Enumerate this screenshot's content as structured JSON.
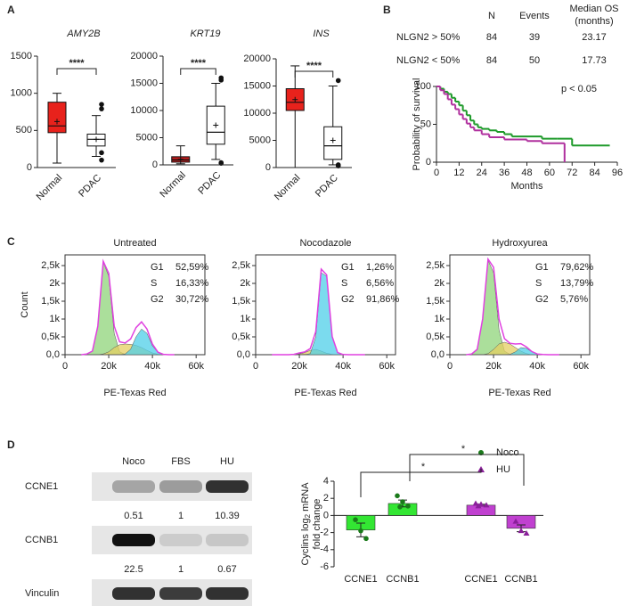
{
  "panel_labels": [
    "A",
    "B",
    "C",
    "D"
  ],
  "chart_data": [
    {
      "type": "box",
      "title": "AMY2B",
      "categories": [
        "Normal",
        "PDAC"
      ],
      "significance": "****",
      "ylim": [
        0,
        1500
      ],
      "yticks": [
        0,
        500,
        1000,
        1500
      ],
      "boxes": [
        {
          "color": "#e8221c",
          "min": 60,
          "q1": 470,
          "median": 560,
          "q3": 880,
          "max": 1000,
          "mean": 620,
          "outliers": []
        },
        {
          "color": "#ffffff",
          "min": 150,
          "q1": 290,
          "median": 380,
          "q3": 450,
          "max": 700,
          "mean": 380,
          "outliers": [
            850,
            790,
            200,
            100
          ]
        }
      ]
    },
    {
      "type": "box",
      "title": "KRT19",
      "categories": [
        "Normal",
        "PDAC"
      ],
      "significance": "****",
      "ylim": [
        0,
        20000
      ],
      "yticks": [
        0,
        5000,
        10000,
        15000,
        20000
      ],
      "boxes": [
        {
          "color": "#b81d1d",
          "min": 200,
          "q1": 500,
          "median": 900,
          "q3": 1500,
          "max": 3500,
          "mean": 1000,
          "outliers": []
        },
        {
          "color": "#ffffff",
          "min": 1000,
          "q1": 3800,
          "median": 6000,
          "q3": 10800,
          "max": 15000,
          "mean": 7300,
          "outliers": [
            16000,
            15600,
            400,
            300
          ]
        }
      ]
    },
    {
      "type": "box",
      "title": "INS",
      "categories": [
        "Normal",
        "PDAC"
      ],
      "significance": "****",
      "ylim": [
        0,
        20000
      ],
      "yticks": [
        0,
        5000,
        10000,
        15000,
        20000
      ],
      "boxes": [
        {
          "color": "#e8221c",
          "min": 0,
          "q1": 10500,
          "median": 12000,
          "q3": 14500,
          "max": 18700,
          "mean": 12500,
          "outliers": []
        },
        {
          "color": "#ffffff",
          "min": 500,
          "q1": 1500,
          "median": 4000,
          "q3": 7500,
          "max": 15000,
          "mean": 5000,
          "outliers": [
            16000,
            500,
            300
          ]
        }
      ]
    },
    {
      "type": "km",
      "xlabel": "Months",
      "ylabel": "Probability of survival",
      "annotation": "p < 0.05",
      "table_columns": [
        "N",
        "Events",
        "Median OS",
        "(months)"
      ],
      "xlim": [
        0,
        96
      ],
      "xticks": [
        0,
        12,
        24,
        36,
        48,
        60,
        72,
        84,
        96
      ],
      "ylim": [
        0,
        100
      ],
      "yticks": [
        0,
        50,
        100
      ],
      "series": [
        {
          "name": "NLGN2 > 50%",
          "color": "#1e9a2a",
          "n": 84,
          "events": 39,
          "median_os": 23.17,
          "x": [
            0,
            2,
            4,
            6,
            8,
            10,
            12,
            14,
            16,
            18,
            20,
            22,
            24,
            28,
            32,
            36,
            40,
            48,
            56,
            64,
            72,
            92
          ],
          "values": [
            100,
            97,
            93,
            90,
            85,
            80,
            75,
            68,
            62,
            55,
            50,
            46,
            44,
            42,
            40,
            37,
            34,
            34,
            31,
            31,
            22,
            22
          ]
        },
        {
          "name": "NLGN2 < 50%",
          "color": "#b0309e",
          "n": 84,
          "events": 50,
          "median_os": 17.73,
          "x": [
            0,
            2,
            4,
            6,
            8,
            10,
            12,
            14,
            16,
            18,
            20,
            24,
            28,
            36,
            48,
            56,
            68
          ],
          "values": [
            100,
            95,
            90,
            83,
            76,
            70,
            63,
            57,
            51,
            46,
            42,
            37,
            33,
            30,
            28,
            25,
            0
          ]
        }
      ]
    },
    {
      "type": "density",
      "title": "Untreated",
      "xlabel": "PE-Texas Red",
      "ylabel": "Count",
      "xlim": [
        0,
        64000
      ],
      "xticks": [
        0,
        {
          "value": 20000,
          "label": "20k"
        },
        {
          "value": 40000,
          "label": "40k"
        },
        {
          "value": 60000,
          "label": "60k"
        }
      ],
      "ylim": [
        0,
        2800
      ],
      "yticks": [
        {
          "value": 0,
          "label": "0,0"
        },
        {
          "value": 500,
          "label": "0,5k"
        },
        {
          "value": 1000,
          "label": "1k"
        },
        {
          "value": 1500,
          "label": "1,5k"
        },
        {
          "value": 2000,
          "label": "2k"
        },
        {
          "value": 2500,
          "label": "2,5k"
        }
      ],
      "x": [
        7500,
        10000,
        12500,
        15000,
        17500,
        20000,
        22500,
        25000,
        27500,
        30000,
        32500,
        35000,
        37500,
        40000,
        42500,
        45000,
        47500,
        50000
      ],
      "series": [
        {
          "name": "G1",
          "color": "#8fd47a",
          "percent": 52.59,
          "percent_label": "52,59%",
          "values": [
            0,
            20,
            100,
            800,
            2600,
            2200,
            600,
            80,
            10,
            0,
            0,
            0,
            0,
            0,
            0,
            0,
            0,
            0
          ]
        },
        {
          "name": "S",
          "color": "#e4cf62",
          "percent": 16.33,
          "percent_label": "16,33%",
          "values": [
            0,
            0,
            0,
            0,
            20,
            80,
            200,
            280,
            300,
            290,
            260,
            200,
            120,
            50,
            10,
            0,
            0,
            0
          ]
        },
        {
          "name": "G2",
          "color": "#4fcfe8",
          "percent": 30.72,
          "percent_label": "30,72%",
          "values": [
            0,
            0,
            0,
            0,
            0,
            0,
            0,
            0,
            20,
            150,
            500,
            720,
            600,
            250,
            60,
            10,
            0,
            0
          ]
        }
      ],
      "envelope": {
        "color": "#e040e0",
        "values": [
          0,
          20,
          100,
          800,
          2620,
          2280,
          800,
          360,
          330,
          440,
          760,
          920,
          720,
          300,
          70,
          10,
          0,
          0
        ]
      }
    },
    {
      "type": "density",
      "title": "Nocodazole",
      "xlabel": "PE-Texas Red",
      "xlim": [
        0,
        64000
      ],
      "xticks": [
        0,
        {
          "value": 20000,
          "label": "20k"
        },
        {
          "value": 40000,
          "label": "40k"
        },
        {
          "value": 60000,
          "label": "60k"
        }
      ],
      "ylim": [
        0,
        2800
      ],
      "yticks": [
        {
          "value": 0,
          "label": "0,0"
        },
        {
          "value": 500,
          "label": "0,5k"
        },
        {
          "value": 1000,
          "label": "1k"
        },
        {
          "value": 1500,
          "label": "1,5k"
        },
        {
          "value": 2000,
          "label": "2k"
        },
        {
          "value": 2500,
          "label": "2,5k"
        }
      ],
      "x": [
        7500,
        10000,
        12500,
        15000,
        17500,
        20000,
        22500,
        25000,
        27500,
        30000,
        32500,
        35000,
        37500,
        40000,
        42500,
        45000,
        47500,
        50000
      ],
      "series": [
        {
          "name": "G1",
          "color": "#8fd47a",
          "percent": 1.26,
          "percent_label": "1,26%",
          "values": [
            0,
            0,
            0,
            0,
            10,
            30,
            20,
            0,
            0,
            0,
            0,
            0,
            0,
            0,
            0,
            0,
            0,
            0
          ]
        },
        {
          "name": "S",
          "color": "#e4cf62",
          "percent": 6.56,
          "percent_label": "6,56%",
          "values": [
            0,
            0,
            0,
            0,
            0,
            20,
            60,
            120,
            150,
            100,
            40,
            10,
            0,
            0,
            0,
            0,
            0,
            0
          ]
        },
        {
          "name": "G2",
          "color": "#4fcfe8",
          "percent": 91.86,
          "percent_label": "91,86%",
          "values": [
            0,
            0,
            0,
            0,
            0,
            0,
            0,
            30,
            500,
            2300,
            2200,
            500,
            60,
            5,
            0,
            0,
            0,
            0
          ]
        }
      ],
      "envelope": {
        "color": "#e040e0",
        "values": [
          0,
          0,
          0,
          0,
          10,
          50,
          80,
          170,
          650,
          2400,
          2240,
          510,
          60,
          5,
          0,
          0,
          0,
          0
        ]
      }
    },
    {
      "type": "density",
      "title": "Hydroxyurea",
      "xlabel": "PE-Texas Red",
      "xlim": [
        0,
        64000
      ],
      "xticks": [
        0,
        {
          "value": 20000,
          "label": "20k"
        },
        {
          "value": 40000,
          "label": "40k"
        },
        {
          "value": 60000,
          "label": "60k"
        }
      ],
      "ylim": [
        0,
        2800
      ],
      "yticks": [
        {
          "value": 0,
          "label": "0,0"
        },
        {
          "value": 500,
          "label": "0,5k"
        },
        {
          "value": 1000,
          "label": "1k"
        },
        {
          "value": 1500,
          "label": "1,5k"
        },
        {
          "value": 2000,
          "label": "2k"
        },
        {
          "value": 2500,
          "label": "2,5k"
        }
      ],
      "x": [
        7500,
        10000,
        12500,
        15000,
        17500,
        20000,
        22500,
        25000,
        27500,
        30000,
        32500,
        35000,
        37500,
        40000,
        42500,
        45000,
        47500,
        50000
      ],
      "series": [
        {
          "name": "G1",
          "color": "#8fd47a",
          "percent": 79.62,
          "percent_label": "79,62%",
          "values": [
            0,
            20,
            150,
            1000,
            2650,
            2300,
            700,
            100,
            10,
            0,
            0,
            0,
            0,
            0,
            0,
            0,
            0,
            0
          ]
        },
        {
          "name": "S",
          "color": "#e4cf62",
          "percent": 13.79,
          "percent_label": "13,79%",
          "values": [
            0,
            0,
            0,
            0,
            30,
            150,
            300,
            350,
            300,
            200,
            100,
            30,
            0,
            0,
            0,
            0,
            0,
            0
          ]
        },
        {
          "name": "G2",
          "color": "#4fcfe8",
          "percent": 5.76,
          "percent_label": "5,76%",
          "values": [
            0,
            0,
            0,
            0,
            0,
            0,
            0,
            0,
            10,
            80,
            200,
            180,
            80,
            20,
            0,
            0,
            0,
            0
          ]
        }
      ],
      "envelope": {
        "color": "#e040e0",
        "values": [
          0,
          20,
          150,
          1000,
          2680,
          2450,
          1000,
          450,
          320,
          300,
          310,
          220,
          90,
          20,
          5,
          0,
          0,
          0
        ]
      }
    },
    {
      "type": "bar",
      "ylabel_parts": [
        "Cyclins log",
        "2",
        " mRNA",
        "fold change"
      ],
      "significance": [
        "*",
        "*"
      ],
      "categories": [
        "CCNE1",
        "CCNB1",
        "CCNE1",
        "CCNB1"
      ],
      "ylim": [
        -6,
        4
      ],
      "yticks": [
        -6,
        -4,
        -2,
        0,
        2,
        4
      ],
      "series": [
        {
          "name": "Noco",
          "color": "#33e633",
          "point_color": "#1a7a1a",
          "marker": "circle",
          "values": [
            -1.7,
            1.4,
            null,
            null
          ],
          "errors": [
            0.8,
            0.4,
            null,
            null
          ],
          "points": [
            [
              -0.5,
              -1.8,
              -2.7
            ],
            [
              2.3,
              1.6,
              1.1,
              1.0
            ],
            null,
            null
          ]
        },
        {
          "name": "HU",
          "color": "#c040d0",
          "point_color": "#8a1f9a",
          "marker": "triangle",
          "values": [
            null,
            null,
            1.2,
            -1.5
          ],
          "errors": [
            null,
            null,
            0.1,
            0.4
          ],
          "points": [
            null,
            null,
            [
              1.4,
              1.3,
              1.2,
              1.1
            ],
            [
              -0.7,
              -1.8,
              -2.1
            ]
          ]
        }
      ]
    }
  ],
  "western_blot": {
    "lanes": [
      "Noco",
      "FBS",
      "HU"
    ],
    "rows": [
      {
        "label": "CCNE1",
        "quant": [
          0.51,
          1,
          10.39
        ]
      },
      {
        "label": "CCNB1",
        "quant": [
          22.5,
          1,
          0.67
        ]
      },
      {
        "label": "Vinculin"
      }
    ]
  }
}
